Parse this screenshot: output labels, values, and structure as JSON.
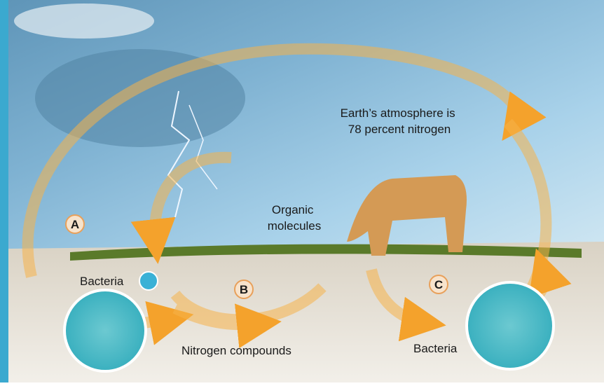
{
  "labels": {
    "atmosphere": [
      "Earth’s atmosphere is",
      "78 percent nitrogen"
    ],
    "organic": [
      "Organic",
      "molecules"
    ],
    "markers": [
      "A",
      "B",
      "C"
    ],
    "bacteria_left": "Bacteria",
    "bacteria_right": "Bacteria",
    "nitrogen_compounds": "Nitrogen compounds"
  }
}
